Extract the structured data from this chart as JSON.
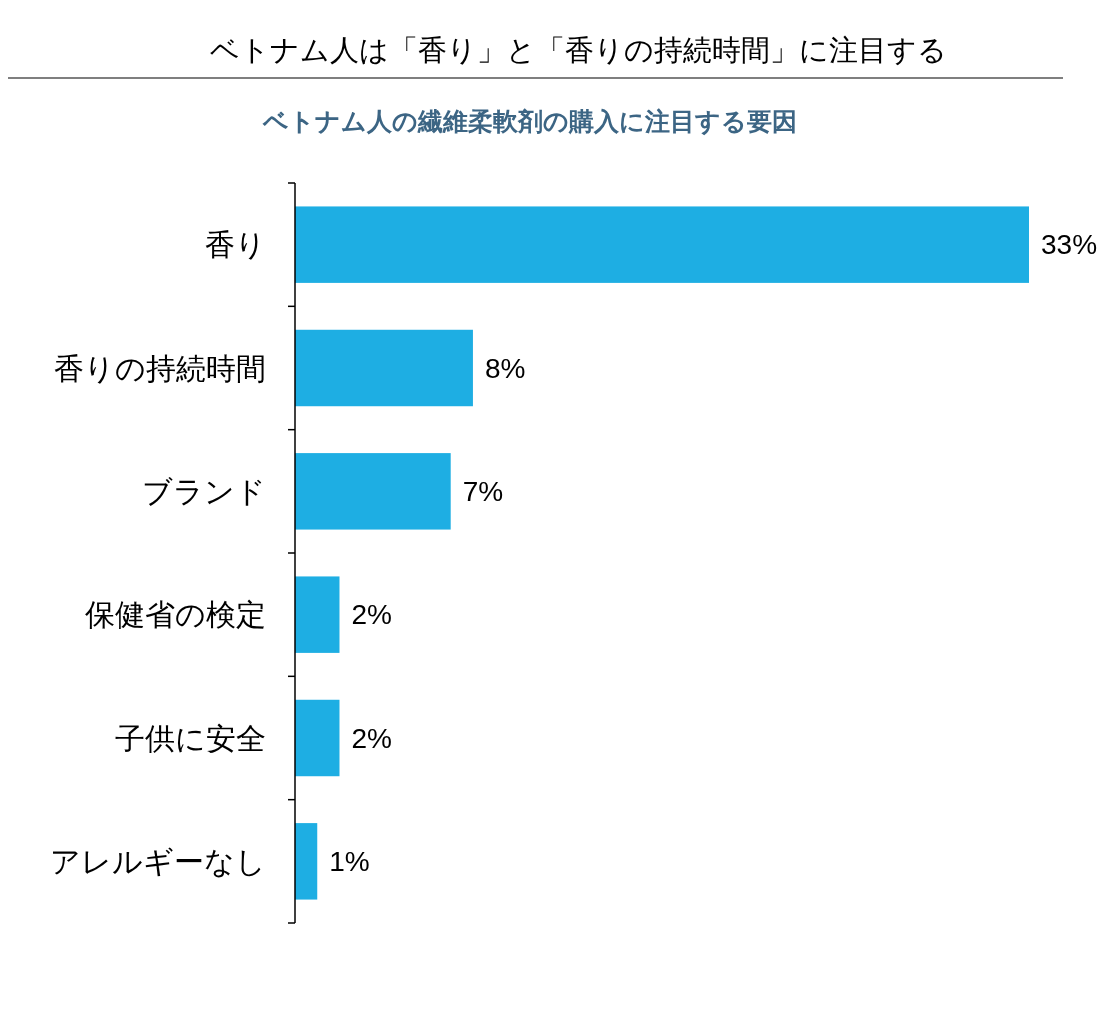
{
  "chart_data": {
    "type": "bar",
    "orientation": "horizontal",
    "title": "ベトナム人は「香り」と「香りの持続時間」に注目する",
    "subtitle": "ベトナム人の繊維柔軟剤の購入に注目する要因",
    "categories": [
      "香り",
      "香りの持続時間",
      "ブランド",
      "保健省の検定",
      "子供に安全",
      "アレルギーなし"
    ],
    "values": [
      33,
      8,
      7,
      2,
      2,
      1
    ],
    "value_labels": [
      "33%",
      "8%",
      "7%",
      "2%",
      "2%",
      "1%"
    ],
    "color": "#1eaee3"
  }
}
